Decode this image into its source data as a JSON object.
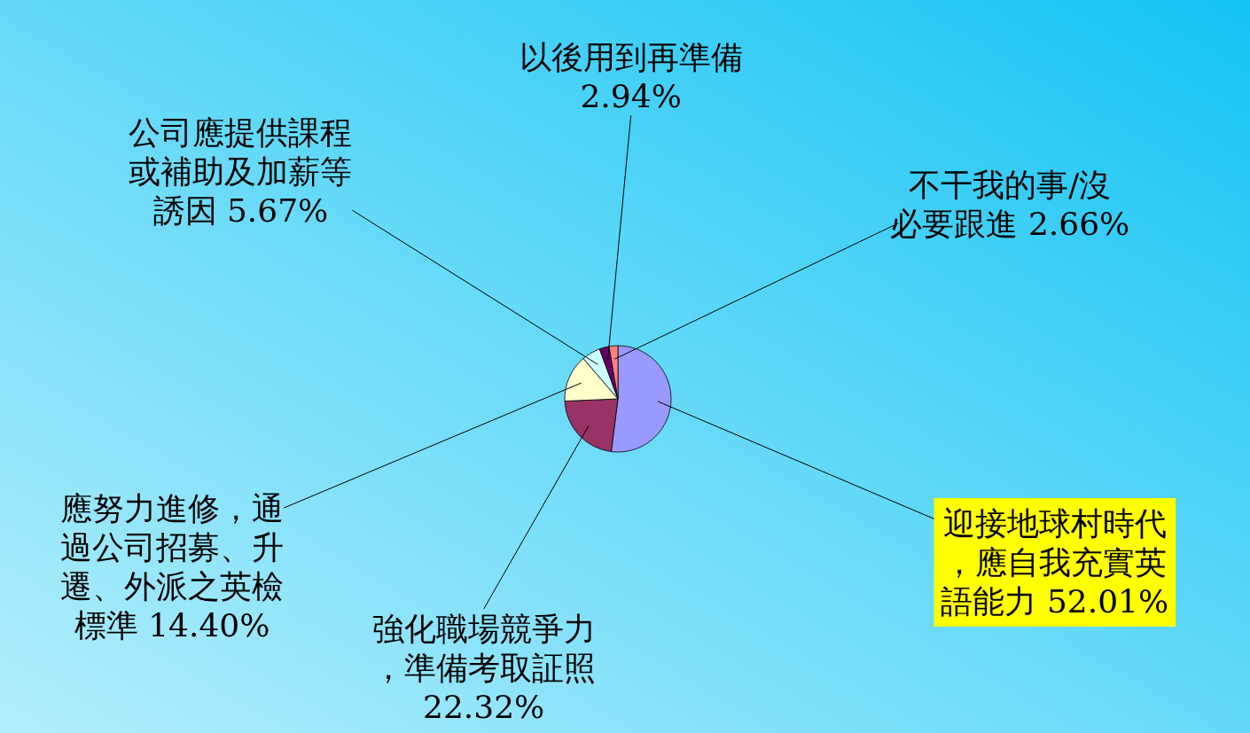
{
  "chart_data": {
    "type": "pie",
    "categories": [
      "迎接地球村時代，應自我充實英語能力",
      "強化職場競爭力，準備考取証照",
      "應努力進修，通過公司招募、升遷、外派之英檢標準",
      "公司應提供課程或補助及加薪等誘因",
      "以後用到再準備",
      "不干我的事/沒必要跟進"
    ],
    "values": [
      52.01,
      22.32,
      14.4,
      5.67,
      2.94,
      2.66
    ],
    "value_labels": [
      "52.01%",
      "22.32%",
      "14.40%",
      "5.67%",
      "2.94%",
      "2.66%"
    ],
    "colors": [
      "#9999ff",
      "#993366",
      "#ffffcc",
      "#ccffff",
      "#660066",
      "#ff8080"
    ]
  }
}
